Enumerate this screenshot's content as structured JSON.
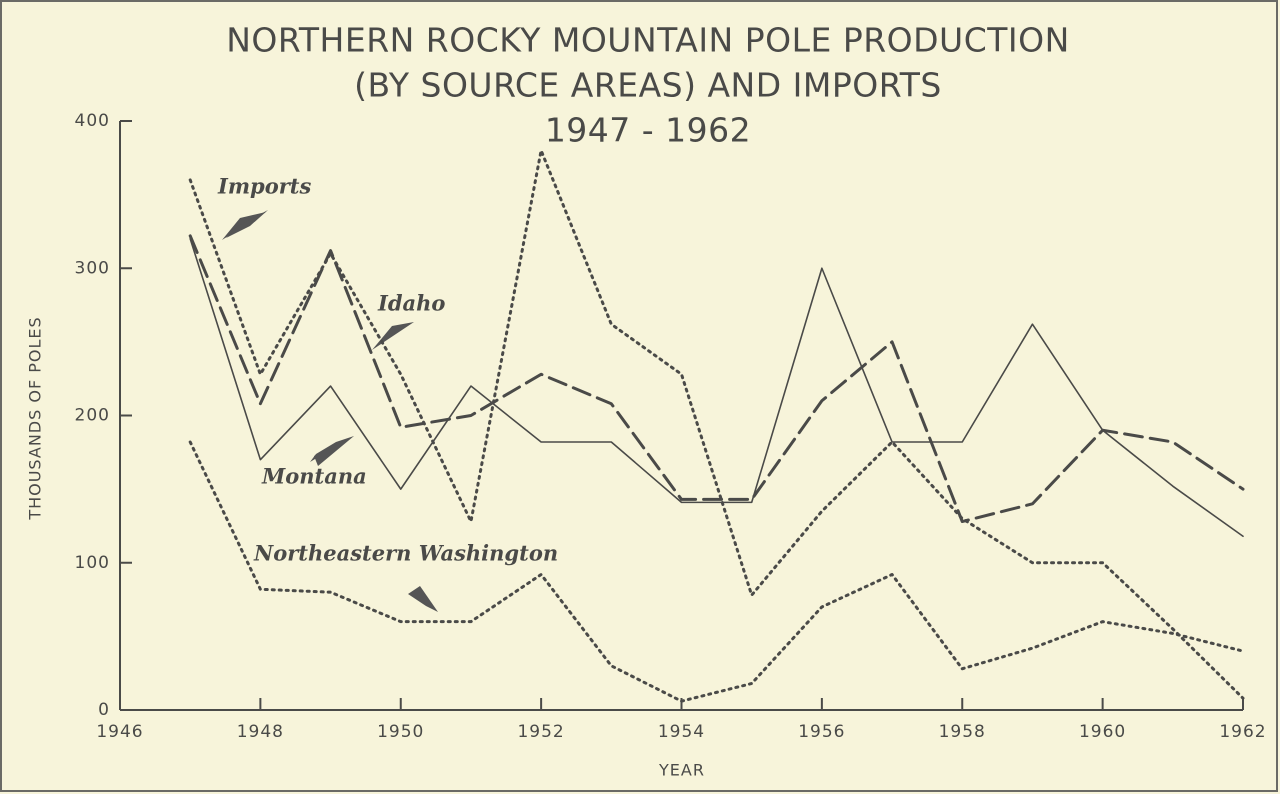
{
  "chart_data": {
    "type": "line",
    "title": [
      "NORTHERN ROCKY MOUNTAIN POLE PRODUCTION",
      "(BY SOURCE AREAS) AND IMPORTS",
      "1947 - 1962"
    ],
    "x_label": "YEAR",
    "y_label": "THOUSANDS OF POLES",
    "x": [
      1947,
      1948,
      1949,
      1950,
      1951,
      1952,
      1953,
      1954,
      1955,
      1956,
      1957,
      1958,
      1959,
      1960,
      1961,
      1962
    ],
    "series": [
      {
        "name": "Montana",
        "color": "#4a4a48",
        "dash": "solid",
        "values": [
          320,
          170,
          220,
          150,
          220,
          182,
          182,
          141,
          141,
          300,
          182,
          182,
          262,
          190,
          152,
          118
        ]
      },
      {
        "name": "Idaho",
        "color": "#4a4a48",
        "dash": "dashed",
        "values": [
          322,
          208,
          312,
          192,
          200,
          228,
          208,
          143,
          143,
          210,
          250,
          128,
          140,
          190,
          182,
          150
        ]
      },
      {
        "name": "Imports",
        "color": "#4a4a48",
        "dash": "dotted",
        "values": [
          360,
          228,
          310,
          228,
          128,
          380,
          262,
          228,
          78,
          135,
          182,
          130,
          100,
          100,
          55,
          8
        ]
      },
      {
        "name": "Northeastern Washington",
        "color": "#4a4a48",
        "dash": "dotted",
        "values": [
          182,
          82,
          80,
          60,
          60,
          92,
          30,
          6,
          18,
          70,
          92,
          28,
          42,
          60,
          52,
          40
        ]
      }
    ],
    "xlim": [
      1946,
      1962
    ],
    "xticks": [
      1946,
      1948,
      1950,
      1952,
      1954,
      1956,
      1958,
      1960,
      1962
    ],
    "ylim": [
      0,
      400
    ],
    "yticks": [
      0,
      100,
      200,
      300,
      400
    ]
  }
}
